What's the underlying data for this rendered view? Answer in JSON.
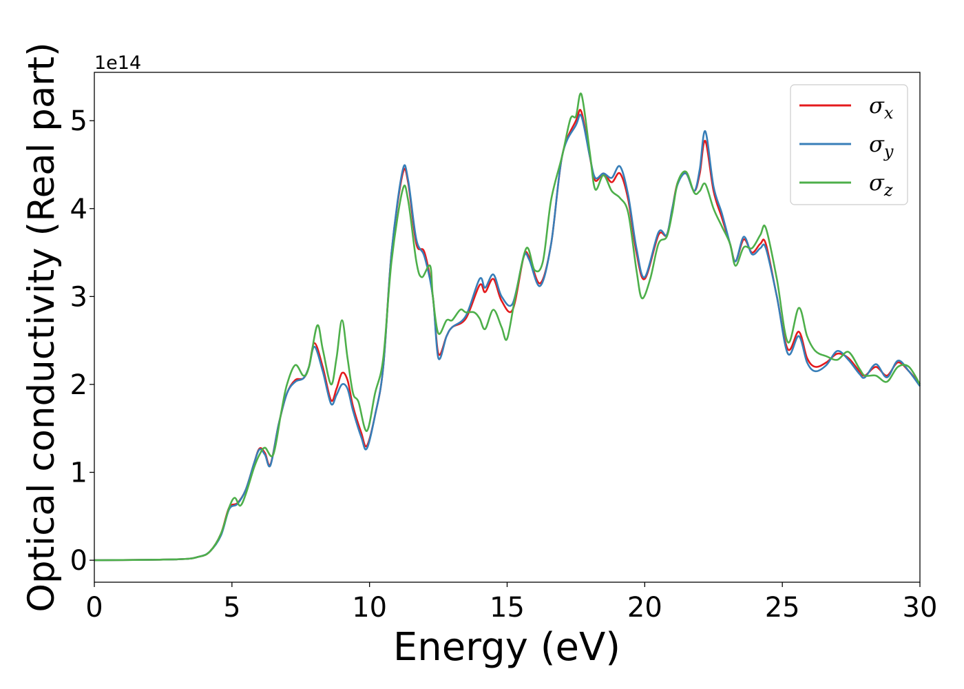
{
  "chart_data": {
    "type": "line",
    "xlabel": "Energy (eV)",
    "ylabel": "Optical conductivity (Real part)",
    "y_offset_label": "1e14",
    "y_scale": 100000000000000.0,
    "xlim": [
      0,
      30
    ],
    "ylim": [
      -0.25,
      5.55
    ],
    "x_ticks": [
      0,
      5,
      10,
      15,
      20,
      25,
      30
    ],
    "y_ticks": [
      0,
      1,
      2,
      3,
      4,
      5
    ],
    "grid": false,
    "legend_position": "top-right",
    "series": [
      {
        "name": "σx",
        "legend_base": "σ",
        "legend_sub": "x",
        "color": "#e41a1c",
        "points": [
          [
            0,
            0
          ],
          [
            3,
            0.01
          ],
          [
            3.8,
            0.04
          ],
          [
            4.2,
            0.1
          ],
          [
            4.6,
            0.3
          ],
          [
            4.9,
            0.6
          ],
          [
            5.2,
            0.65
          ],
          [
            5.5,
            0.8
          ],
          [
            5.8,
            1.1
          ],
          [
            6.0,
            1.27
          ],
          [
            6.2,
            1.22
          ],
          [
            6.4,
            1.09
          ],
          [
            6.7,
            1.55
          ],
          [
            7.0,
            1.9
          ],
          [
            7.3,
            2.05
          ],
          [
            7.6,
            2.07
          ],
          [
            7.8,
            2.2
          ],
          [
            8.0,
            2.47
          ],
          [
            8.3,
            2.2
          ],
          [
            8.6,
            1.82
          ],
          [
            8.8,
            1.95
          ],
          [
            9.0,
            2.13
          ],
          [
            9.2,
            2.05
          ],
          [
            9.4,
            1.75
          ],
          [
            9.7,
            1.45
          ],
          [
            9.9,
            1.3
          ],
          [
            10.2,
            1.65
          ],
          [
            10.5,
            2.2
          ],
          [
            10.8,
            3.5
          ],
          [
            11.2,
            4.39
          ],
          [
            11.4,
            4.3
          ],
          [
            11.7,
            3.6
          ],
          [
            12.0,
            3.5
          ],
          [
            12.3,
            3.0
          ],
          [
            12.5,
            2.35
          ],
          [
            12.8,
            2.55
          ],
          [
            13.0,
            2.65
          ],
          [
            13.5,
            2.75
          ],
          [
            14.0,
            3.13
          ],
          [
            14.2,
            3.05
          ],
          [
            14.5,
            3.2
          ],
          [
            14.8,
            2.95
          ],
          [
            15.2,
            2.85
          ],
          [
            15.6,
            3.45
          ],
          [
            15.8,
            3.45
          ],
          [
            16.2,
            3.15
          ],
          [
            16.6,
            3.6
          ],
          [
            17.0,
            4.6
          ],
          [
            17.5,
            5.0
          ],
          [
            17.7,
            5.1
          ],
          [
            18.0,
            4.6
          ],
          [
            18.2,
            4.32
          ],
          [
            18.5,
            4.4
          ],
          [
            18.8,
            4.3
          ],
          [
            19.1,
            4.4
          ],
          [
            19.4,
            4.1
          ],
          [
            19.7,
            3.5
          ],
          [
            20.0,
            3.2
          ],
          [
            20.5,
            3.7
          ],
          [
            20.8,
            3.7
          ],
          [
            21.0,
            4.0
          ],
          [
            21.2,
            4.3
          ],
          [
            21.5,
            4.4
          ],
          [
            21.8,
            4.2
          ],
          [
            22.0,
            4.4
          ],
          [
            22.2,
            4.77
          ],
          [
            22.5,
            4.2
          ],
          [
            22.8,
            3.9
          ],
          [
            23.1,
            3.6
          ],
          [
            23.3,
            3.4
          ],
          [
            23.6,
            3.65
          ],
          [
            23.9,
            3.5
          ],
          [
            24.2,
            3.6
          ],
          [
            24.4,
            3.6
          ],
          [
            24.8,
            3.0
          ],
          [
            25.2,
            2.4
          ],
          [
            25.6,
            2.6
          ],
          [
            25.9,
            2.3
          ],
          [
            26.2,
            2.2
          ],
          [
            26.6,
            2.25
          ],
          [
            27.0,
            2.35
          ],
          [
            27.4,
            2.3
          ],
          [
            27.8,
            2.15
          ],
          [
            28.0,
            2.1
          ],
          [
            28.4,
            2.2
          ],
          [
            28.8,
            2.1
          ],
          [
            29.2,
            2.25
          ],
          [
            29.6,
            2.15
          ],
          [
            30,
            2.0
          ]
        ]
      },
      {
        "name": "σy",
        "legend_base": "σ",
        "legend_sub": "y",
        "color": "#377eb8",
        "points": [
          [
            0,
            0
          ],
          [
            3,
            0.01
          ],
          [
            3.8,
            0.04
          ],
          [
            4.2,
            0.1
          ],
          [
            4.6,
            0.28
          ],
          [
            4.9,
            0.58
          ],
          [
            5.2,
            0.64
          ],
          [
            5.5,
            0.8
          ],
          [
            5.8,
            1.1
          ],
          [
            6.0,
            1.26
          ],
          [
            6.2,
            1.2
          ],
          [
            6.4,
            1.08
          ],
          [
            6.7,
            1.55
          ],
          [
            7.0,
            1.9
          ],
          [
            7.3,
            2.03
          ],
          [
            7.6,
            2.07
          ],
          [
            7.8,
            2.2
          ],
          [
            8.0,
            2.43
          ],
          [
            8.3,
            2.15
          ],
          [
            8.6,
            1.78
          ],
          [
            8.8,
            1.88
          ],
          [
            9.0,
            2.0
          ],
          [
            9.2,
            1.95
          ],
          [
            9.4,
            1.7
          ],
          [
            9.7,
            1.4
          ],
          [
            9.9,
            1.27
          ],
          [
            10.2,
            1.65
          ],
          [
            10.5,
            2.2
          ],
          [
            10.8,
            3.5
          ],
          [
            11.2,
            4.43
          ],
          [
            11.4,
            4.33
          ],
          [
            11.7,
            3.65
          ],
          [
            12.0,
            3.45
          ],
          [
            12.3,
            3.0
          ],
          [
            12.5,
            2.3
          ],
          [
            12.8,
            2.55
          ],
          [
            13.0,
            2.65
          ],
          [
            13.5,
            2.78
          ],
          [
            14.0,
            3.2
          ],
          [
            14.2,
            3.1
          ],
          [
            14.5,
            3.25
          ],
          [
            14.8,
            3.0
          ],
          [
            15.2,
            2.92
          ],
          [
            15.6,
            3.45
          ],
          [
            15.8,
            3.42
          ],
          [
            16.2,
            3.12
          ],
          [
            16.6,
            3.6
          ],
          [
            17.0,
            4.6
          ],
          [
            17.5,
            4.95
          ],
          [
            17.7,
            5.05
          ],
          [
            18.0,
            4.6
          ],
          [
            18.2,
            4.35
          ],
          [
            18.5,
            4.4
          ],
          [
            18.8,
            4.35
          ],
          [
            19.1,
            4.48
          ],
          [
            19.4,
            4.15
          ],
          [
            19.7,
            3.55
          ],
          [
            20.0,
            3.22
          ],
          [
            20.5,
            3.73
          ],
          [
            20.8,
            3.7
          ],
          [
            21.0,
            4.0
          ],
          [
            21.2,
            4.28
          ],
          [
            21.5,
            4.4
          ],
          [
            21.8,
            4.2
          ],
          [
            22.0,
            4.45
          ],
          [
            22.2,
            4.88
          ],
          [
            22.5,
            4.25
          ],
          [
            22.8,
            3.95
          ],
          [
            23.1,
            3.6
          ],
          [
            23.3,
            3.4
          ],
          [
            23.6,
            3.68
          ],
          [
            23.9,
            3.48
          ],
          [
            24.2,
            3.55
          ],
          [
            24.4,
            3.55
          ],
          [
            24.8,
            3.0
          ],
          [
            25.2,
            2.35
          ],
          [
            25.6,
            2.55
          ],
          [
            25.9,
            2.25
          ],
          [
            26.2,
            2.15
          ],
          [
            26.6,
            2.22
          ],
          [
            27.0,
            2.38
          ],
          [
            27.4,
            2.28
          ],
          [
            27.8,
            2.12
          ],
          [
            28.0,
            2.08
          ],
          [
            28.4,
            2.23
          ],
          [
            28.8,
            2.08
          ],
          [
            29.2,
            2.27
          ],
          [
            29.6,
            2.15
          ],
          [
            30,
            1.98
          ]
        ]
      },
      {
        "name": "σz",
        "legend_base": "σ",
        "legend_sub": "z",
        "color": "#4daf4a",
        "points": [
          [
            0,
            0
          ],
          [
            3,
            0.01
          ],
          [
            3.8,
            0.04
          ],
          [
            4.2,
            0.1
          ],
          [
            4.6,
            0.3
          ],
          [
            4.9,
            0.6
          ],
          [
            5.1,
            0.71
          ],
          [
            5.3,
            0.62
          ],
          [
            5.5,
            0.75
          ],
          [
            5.8,
            1.05
          ],
          [
            6.0,
            1.2
          ],
          [
            6.2,
            1.28
          ],
          [
            6.5,
            1.2
          ],
          [
            6.8,
            1.7
          ],
          [
            7.0,
            2.0
          ],
          [
            7.3,
            2.22
          ],
          [
            7.6,
            2.1
          ],
          [
            7.8,
            2.2
          ],
          [
            8.1,
            2.67
          ],
          [
            8.3,
            2.4
          ],
          [
            8.6,
            2.0
          ],
          [
            8.8,
            2.3
          ],
          [
            9.0,
            2.73
          ],
          [
            9.2,
            2.3
          ],
          [
            9.4,
            1.9
          ],
          [
            9.6,
            1.8
          ],
          [
            9.9,
            1.47
          ],
          [
            10.2,
            1.9
          ],
          [
            10.5,
            2.3
          ],
          [
            10.8,
            3.4
          ],
          [
            11.2,
            4.21
          ],
          [
            11.4,
            4.1
          ],
          [
            11.7,
            3.4
          ],
          [
            11.9,
            3.22
          ],
          [
            12.2,
            3.35
          ],
          [
            12.3,
            3.0
          ],
          [
            12.5,
            2.58
          ],
          [
            12.8,
            2.73
          ],
          [
            13.0,
            2.73
          ],
          [
            13.3,
            2.85
          ],
          [
            13.5,
            2.82
          ],
          [
            13.8,
            2.82
          ],
          [
            14.0,
            2.75
          ],
          [
            14.2,
            2.63
          ],
          [
            14.5,
            2.85
          ],
          [
            14.8,
            2.65
          ],
          [
            15.0,
            2.52
          ],
          [
            15.3,
            3.0
          ],
          [
            15.7,
            3.55
          ],
          [
            16.0,
            3.3
          ],
          [
            16.3,
            3.4
          ],
          [
            16.6,
            4.1
          ],
          [
            17.0,
            4.6
          ],
          [
            17.3,
            5.02
          ],
          [
            17.5,
            5.05
          ],
          [
            17.7,
            5.3
          ],
          [
            18.0,
            4.65
          ],
          [
            18.2,
            4.22
          ],
          [
            18.5,
            4.38
          ],
          [
            18.8,
            4.2
          ],
          [
            19.1,
            4.12
          ],
          [
            19.4,
            3.95
          ],
          [
            19.7,
            3.3
          ],
          [
            19.9,
            2.98
          ],
          [
            20.2,
            3.2
          ],
          [
            20.5,
            3.6
          ],
          [
            20.8,
            3.68
          ],
          [
            21.0,
            3.95
          ],
          [
            21.2,
            4.3
          ],
          [
            21.5,
            4.42
          ],
          [
            21.8,
            4.18
          ],
          [
            22.0,
            4.2
          ],
          [
            22.2,
            4.28
          ],
          [
            22.5,
            4.0
          ],
          [
            22.8,
            3.8
          ],
          [
            23.1,
            3.6
          ],
          [
            23.3,
            3.35
          ],
          [
            23.6,
            3.56
          ],
          [
            23.9,
            3.55
          ],
          [
            24.2,
            3.7
          ],
          [
            24.4,
            3.78
          ],
          [
            24.8,
            3.2
          ],
          [
            25.2,
            2.48
          ],
          [
            25.6,
            2.87
          ],
          [
            25.9,
            2.55
          ],
          [
            26.2,
            2.38
          ],
          [
            26.6,
            2.32
          ],
          [
            27.0,
            2.28
          ],
          [
            27.4,
            2.37
          ],
          [
            27.8,
            2.18
          ],
          [
            28.0,
            2.1
          ],
          [
            28.4,
            2.1
          ],
          [
            28.8,
            2.03
          ],
          [
            29.2,
            2.2
          ],
          [
            29.6,
            2.2
          ],
          [
            30,
            2.0
          ]
        ]
      }
    ]
  }
}
